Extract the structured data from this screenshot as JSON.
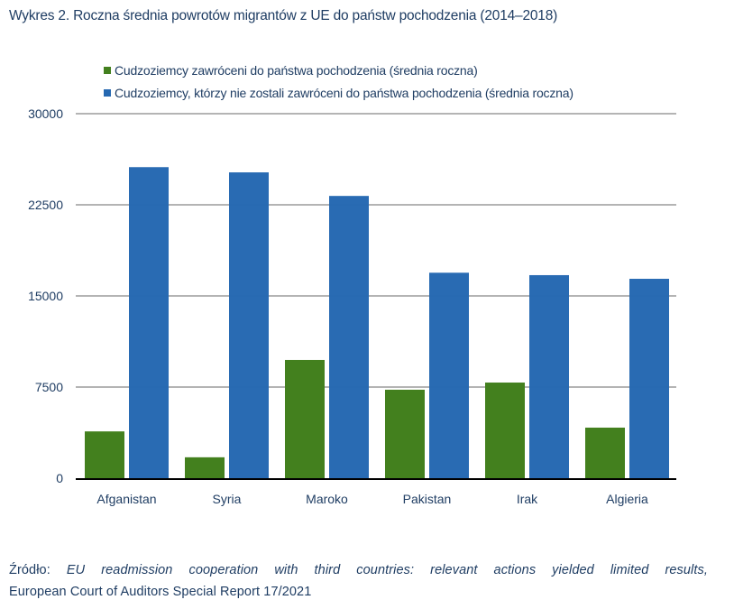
{
  "title": "Wykres 2. Roczna średnia powrotów migrantów z UE do państw pochodzenia (2014–2018)",
  "colors": {
    "series_green": "#43801e",
    "series_blue": "#2568b1",
    "gridline": "#b4b4b4",
    "axis": "#000000",
    "text": "#1f3d63"
  },
  "chart_data": {
    "type": "bar",
    "title": "Wykres 2. Roczna średnia powrotów migrantów z UE do państw pochodzenia (2014–2018)",
    "xlabel": "",
    "ylabel": "",
    "categories": [
      "Afganistan",
      "Syria",
      "Maroko",
      "Pakistan",
      "Irak",
      "Algieria"
    ],
    "series": [
      {
        "name": "Cudzoziemcy zawróceni do państwa pochodzenia (średnia roczna)",
        "color": "#43801e",
        "values": [
          3850,
          1720,
          9730,
          7280,
          7870,
          4160
        ]
      },
      {
        "name": "Cudzoziemcy, którzy nie zostali zawróceni do państwa pochodzenia (średnia roczna)",
        "color": "#2568b1",
        "values": [
          25600,
          25170,
          23230,
          16910,
          16710,
          16410
        ]
      }
    ],
    "ylim": [
      0,
      30000
    ],
    "yticks": [
      0,
      7500,
      15000,
      22500,
      30000
    ],
    "ytick_labels": [
      "0",
      "7500",
      "15000",
      "22500",
      "30000"
    ],
    "grid": true,
    "legend_position": "top"
  },
  "source": {
    "prefix": "Źródło: ",
    "italic": "EU readmission cooperation with third countries: relevant actions yielded limited results,",
    "line2": "European Court of Auditors Special Report 17/2021"
  }
}
